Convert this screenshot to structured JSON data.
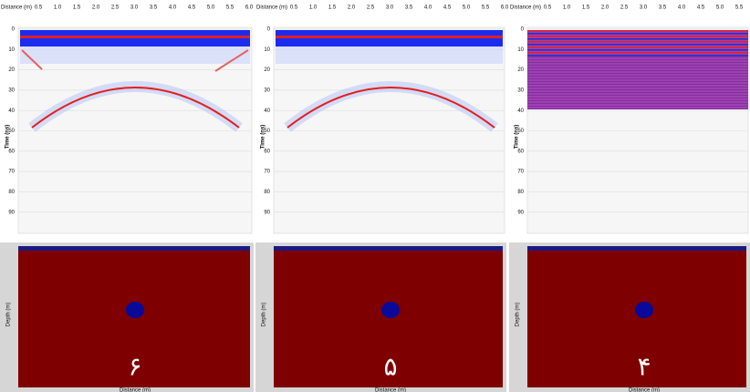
{
  "panels": [
    {
      "distance_label": "Distance (m)",
      "distance_ticks": [
        "0.5",
        "1.0",
        "1.5",
        "2.0",
        "2.5",
        "3.0",
        "3.5",
        "4.0",
        "4.5",
        "5.0",
        "5.5",
        "6.0"
      ],
      "time_label": "Time (ns)",
      "time_ticks": [
        "0",
        "10",
        "20",
        "30",
        "40",
        "50",
        "60",
        "70",
        "80",
        "90"
      ],
      "depth_label": "Depth (m)",
      "bottom_distance_label": "Distance (m)",
      "number": "۶"
    },
    {
      "distance_label": "Distance (m)",
      "distance_ticks": [
        "0.5",
        "1.0",
        "1.5",
        "2.0",
        "2.5",
        "3.0",
        "3.5",
        "4.0",
        "4.5",
        "5.0",
        "5.5",
        "6.0"
      ],
      "time_label": "Time (ns)",
      "time_ticks": [
        "0",
        "10",
        "20",
        "30",
        "40",
        "50",
        "60",
        "70",
        "80",
        "90"
      ],
      "depth_label": "Depth (m)",
      "bottom_distance_label": "Distance (m)",
      "number": "۵"
    },
    {
      "distance_label": "Distance (m)",
      "distance_ticks": [
        "0.5",
        "1.0",
        "1.5",
        "2.0",
        "2.5",
        "3.0",
        "3.5",
        "4.0",
        "4.5",
        "5.0",
        "5.5"
      ],
      "time_label": "Time (ns)",
      "time_ticks": [
        "0",
        "10",
        "20",
        "30",
        "40",
        "50",
        "60",
        "70",
        "80",
        "90"
      ],
      "depth_label": "Depth (m)",
      "bottom_distance_label": "Distance (m)",
      "number": "۴"
    }
  ]
}
